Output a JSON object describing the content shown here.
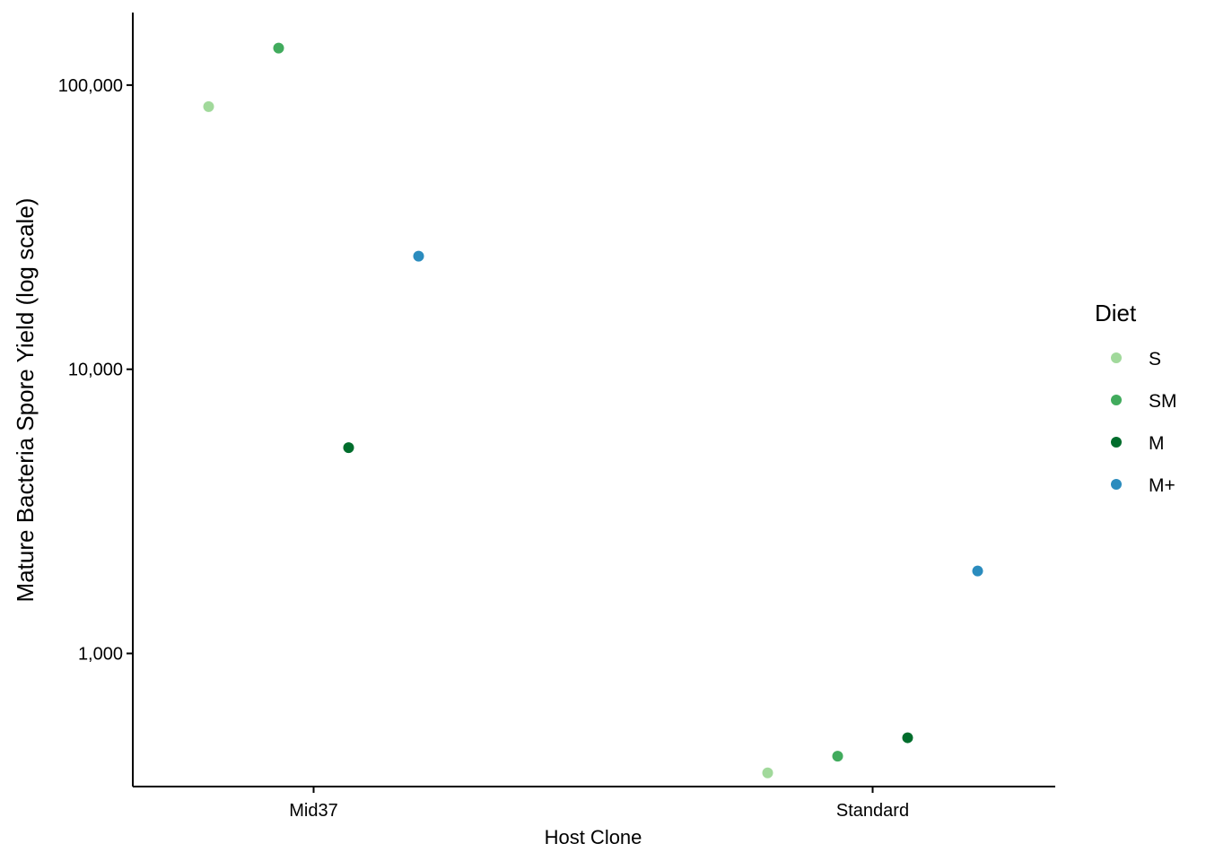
{
  "chart_data": {
    "type": "scatter",
    "xlabel": "Host Clone",
    "ylabel": "Mature Bacteria Spore Yield (log scale)",
    "y_scale": "log10",
    "ylim": [
      340,
      180000
    ],
    "categories": [
      "Mid37",
      "Standard"
    ],
    "y_ticks": [
      1000,
      10000,
      100000
    ],
    "y_tick_labels": [
      "1,000",
      "10,000",
      "100,000"
    ],
    "grid": false,
    "legend": {
      "title": "Diet",
      "position": "right"
    },
    "series": [
      {
        "name": "S",
        "color": "#A1D99B",
        "points": [
          {
            "x": "Mid37",
            "y": 84000
          },
          {
            "x": "Standard",
            "y": 380
          }
        ]
      },
      {
        "name": "SM",
        "color": "#41AB5D",
        "points": [
          {
            "x": "Mid37",
            "y": 135000
          },
          {
            "x": "Standard",
            "y": 435
          }
        ]
      },
      {
        "name": "M",
        "color": "#006D2C",
        "points": [
          {
            "x": "Mid37",
            "y": 5300
          },
          {
            "x": "Standard",
            "y": 505
          }
        ]
      },
      {
        "name": "M+",
        "color": "#2B8CBE",
        "points": [
          {
            "x": "Mid37",
            "y": 25000
          },
          {
            "x": "Standard",
            "y": 1950
          }
        ]
      }
    ]
  }
}
